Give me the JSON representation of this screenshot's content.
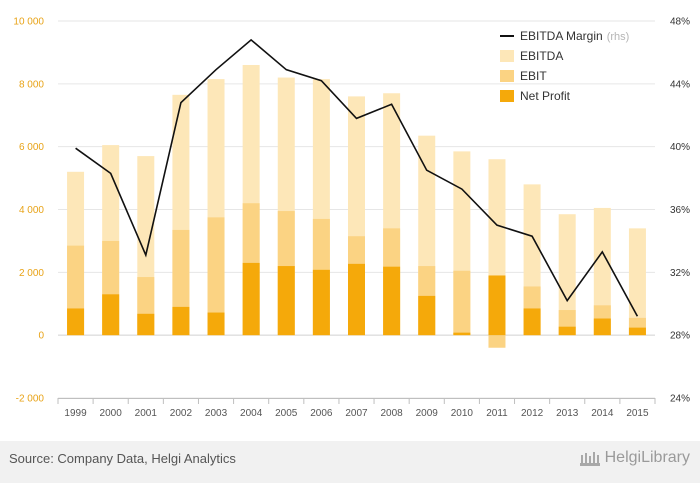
{
  "chart_data": {
    "type": "bar",
    "categories": [
      "1999",
      "2000",
      "2001",
      "2002",
      "2003",
      "2004",
      "2005",
      "2006",
      "2007",
      "2008",
      "2009",
      "2010",
      "2011",
      "2012",
      "2013",
      "2014",
      "2015"
    ],
    "series": [
      {
        "name": "EBITDA",
        "type": "bar",
        "axis": "left",
        "color": "#fde7b8",
        "values": [
          5200,
          6050,
          5700,
          7650,
          8150,
          8600,
          8200,
          8150,
          7600,
          7700,
          6350,
          5850,
          5600,
          4800,
          3850,
          4050,
          3400
        ]
      },
      {
        "name": "EBIT",
        "type": "bar",
        "axis": "left",
        "color": "#fbd383",
        "values": [
          2850,
          3000,
          1850,
          3350,
          3750,
          4200,
          3950,
          3700,
          3150,
          3400,
          2200,
          2050,
          -400,
          1550,
          800,
          950,
          550
        ]
      },
      {
        "name": "Net Profit",
        "type": "bar",
        "axis": "left",
        "color": "#f5a90a",
        "values": [
          850,
          1300,
          680,
          900,
          720,
          2300,
          2200,
          2080,
          2270,
          2180,
          1250,
          80,
          1900,
          850,
          270,
          530,
          240
        ]
      },
      {
        "name": "EBITDA Margin",
        "type": "line",
        "axis": "right",
        "color": "#111111",
        "values": [
          39.9,
          38.3,
          33.1,
          42.8,
          44.9,
          46.8,
          44.9,
          44.2,
          41.8,
          42.7,
          38.5,
          37.3,
          35.0,
          34.3,
          30.2,
          33.3,
          29.2
        ]
      }
    ],
    "left_axis": {
      "min": -2000,
      "max": 10000,
      "ticks": [
        -2000,
        0,
        2000,
        4000,
        6000,
        8000,
        10000
      ],
      "tick_labels": [
        "-2 000",
        "0",
        "2 000",
        "4 000",
        "6 000",
        "8 000",
        "10 000"
      ]
    },
    "right_axis": {
      "min": 24,
      "max": 48,
      "ticks": [
        24,
        28,
        32,
        36,
        40,
        44,
        48
      ],
      "tick_labels": [
        "24%",
        "28%",
        "32%",
        "36%",
        "40%",
        "44%",
        "48%"
      ]
    },
    "legend": [
      {
        "label": "EBITDA Margin",
        "note": "(rhs)",
        "kind": "line",
        "color": "#111111"
      },
      {
        "label": "EBITDA",
        "kind": "box",
        "color": "#fde7b8"
      },
      {
        "label": "EBIT",
        "kind": "box",
        "color": "#fbd383"
      },
      {
        "label": "Net Profit",
        "kind": "box",
        "color": "#f5a90a"
      }
    ],
    "legend_position": "top-right",
    "grid": true
  },
  "footer": {
    "source": "Source: Company Data, Helgi Analytics",
    "brand": "HelgiLibrary"
  }
}
